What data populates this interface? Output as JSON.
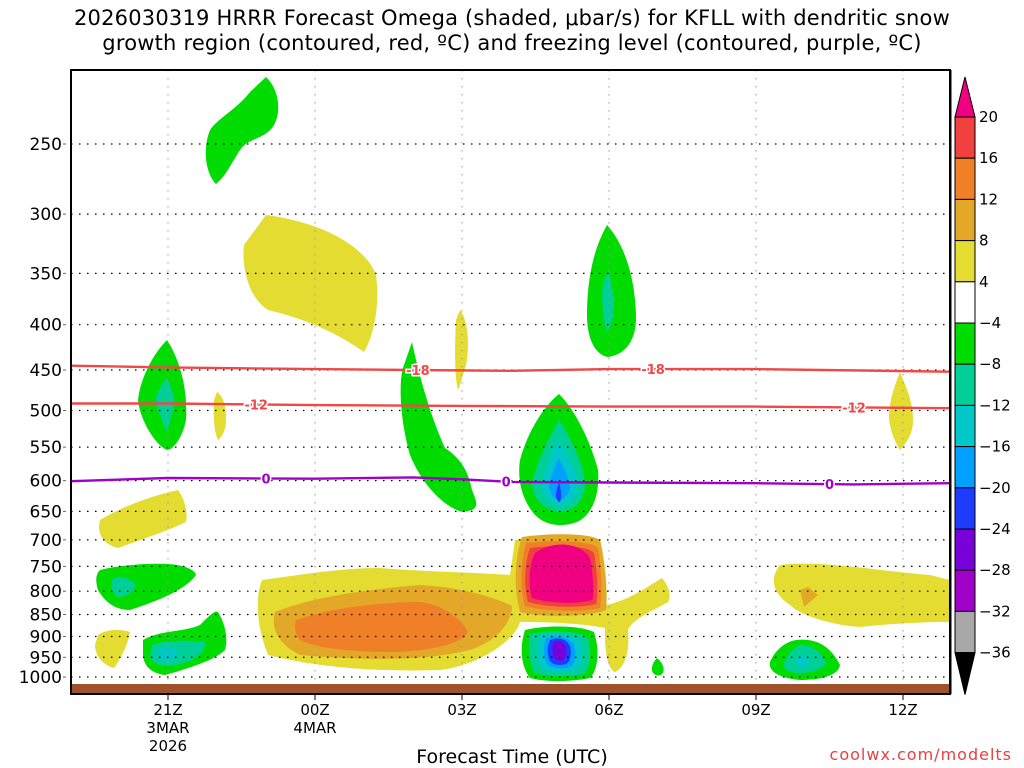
{
  "chart_data": {
    "type": "heatmap",
    "title_line1": "2026030319 HRRR Forecast Omega (shaded, μbar/s) for KFLL with dendritic snow",
    "title_line2": "growth region (contoured, red, ºC) and freezing level (contoured, purple, ºC)",
    "xlabel": "Forecast Time (UTC)",
    "ylabel": "",
    "credit": "coolwx.com/modelts",
    "x_range_hours": [
      -2.0,
      16.0
    ],
    "y_range_hpa": [
      1040,
      195
    ],
    "x_ticks": [
      {
        "hour": 0,
        "label": "21Z",
        "sub1": "3MAR",
        "sub2": "2026"
      },
      {
        "hour": 3,
        "label": "00Z",
        "sub1": "4MAR",
        "sub2": ""
      },
      {
        "hour": 6,
        "label": "03Z",
        "sub1": "",
        "sub2": ""
      },
      {
        "hour": 9,
        "label": "06Z",
        "sub1": "",
        "sub2": ""
      },
      {
        "hour": 12,
        "label": "09Z",
        "sub1": "",
        "sub2": ""
      },
      {
        "hour": 15,
        "label": "12Z",
        "sub1": "",
        "sub2": ""
      }
    ],
    "y_ticks": [
      250,
      300,
      350,
      400,
      450,
      500,
      550,
      600,
      650,
      700,
      750,
      800,
      850,
      900,
      950,
      1000
    ],
    "grid": true,
    "colorbar": {
      "position": "right",
      "units": "μbar/s",
      "levels": [
        20,
        16,
        12,
        8,
        4,
        -4,
        -8,
        -12,
        -16,
        -20,
        -24,
        -28,
        -32,
        -36
      ],
      "colors": [
        "#f00080",
        "#f04040",
        "#f08028",
        "#e4a828",
        "#e4dc30",
        "#ffffff",
        "#00dc00",
        "#00d098",
        "#00c8c8",
        "#00a0ff",
        "#1e3cff",
        "#7800d8",
        "#a000c8",
        "#a8a8a8",
        "#000000"
      ]
    },
    "omega_features": [
      {
        "name": "upper-green-cell",
        "hour": 0.8,
        "p": 260,
        "min": -6
      },
      {
        "name": "upper-yellow-cell",
        "hour": 2.3,
        "p": 360,
        "max": 6
      },
      {
        "name": "small-yellow-cell",
        "hour": 6.1,
        "p": 425,
        "max": 5
      },
      {
        "name": "green-cell-06z",
        "hour": 9.0,
        "p": 370,
        "min": -9
      },
      {
        "name": "green-cell-21z",
        "hour": 0.0,
        "p": 490,
        "min": -10
      },
      {
        "name": "yellow-sliver",
        "hour": 1.0,
        "p": 510,
        "max": 5
      },
      {
        "name": "green-tail-02z",
        "hour": 5.5,
        "p": 530,
        "min": -6
      },
      {
        "name": "yellow-cell-13z",
        "hour": 15.0,
        "p": 505,
        "max": 5
      },
      {
        "name": "downdraft-core",
        "hour": 8.0,
        "p": 600,
        "min": -21
      },
      {
        "name": "updraft-core",
        "hour": 8.0,
        "p": 780,
        "max": 24
      },
      {
        "name": "low-downdraft-core",
        "hour": 8.0,
        "p": 940,
        "min": -30
      },
      {
        "name": "broad-orange-band",
        "hour": 4.0,
        "p": 870,
        "max": 14
      },
      {
        "name": "low-yellow-band-09z",
        "hour": 14.0,
        "p": 810,
        "max": 9
      },
      {
        "name": "low-green-cell-09z",
        "hour": 12.7,
        "p": 950,
        "min": -13
      },
      {
        "name": "low-green-cell-21z",
        "hour": 0.0,
        "p": 945,
        "min": -15
      },
      {
        "name": "green-cell-20z",
        "hour": -1.1,
        "p": 790,
        "min": -10
      },
      {
        "name": "yellow-cell-20z",
        "hour": -1.0,
        "p": 670,
        "max": 6
      },
      {
        "name": "yellow-cell-low-20z",
        "hour": -1.2,
        "p": 925,
        "max": 6
      },
      {
        "name": "tiny-green-cell",
        "hour": 10.0,
        "p": 960,
        "min": -6
      }
    ],
    "contours": [
      {
        "name": "dgz-minus18",
        "color": "#f04848",
        "value_c": -18,
        "label": "-18",
        "points": [
          [
            -2,
            445
          ],
          [
            0,
            447
          ],
          [
            3,
            449
          ],
          [
            5,
            450
          ],
          [
            7,
            451
          ],
          [
            9,
            449
          ],
          [
            12,
            449
          ],
          [
            16,
            452
          ]
        ],
        "label_hours": [
          5.1,
          9.9
        ]
      },
      {
        "name": "dgz-minus12",
        "color": "#f04848",
        "value_c": -12,
        "label": "-12",
        "points": [
          [
            -2,
            491
          ],
          [
            0,
            491
          ],
          [
            3,
            493
          ],
          [
            6,
            494
          ],
          [
            9,
            495
          ],
          [
            12,
            495
          ],
          [
            16,
            497
          ]
        ],
        "label_hours": [
          1.8,
          14.0
        ]
      },
      {
        "name": "freezing-level",
        "color": "#a000c8",
        "value_c": 0,
        "label": "0",
        "points": [
          [
            -2,
            601
          ],
          [
            0,
            596
          ],
          [
            3,
            597
          ],
          [
            5,
            595
          ],
          [
            6,
            598
          ],
          [
            7,
            602
          ],
          [
            9,
            603
          ],
          [
            12,
            604
          ],
          [
            14,
            606
          ],
          [
            16,
            604
          ]
        ],
        "label_hours": [
          2.0,
          6.9,
          13.5
        ]
      }
    ]
  }
}
